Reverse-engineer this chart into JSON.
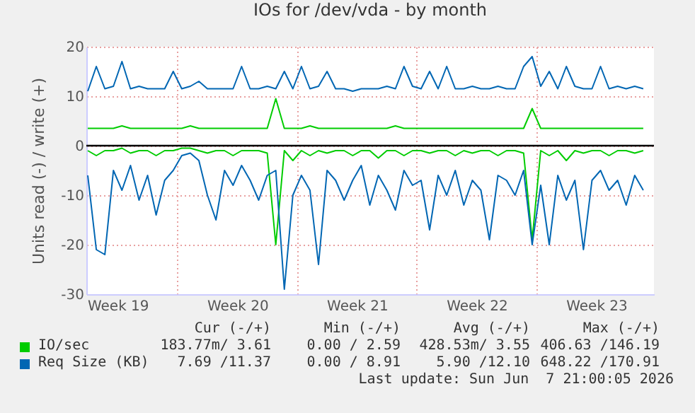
{
  "chart_data": {
    "type": "line",
    "title": "IOs for /dev/vda - by month",
    "ylabel": "Units read (-) / write (+)",
    "x": [
      "2026-05-05T18:00",
      "2026-05-06T06:00",
      "2026-05-06T18:00",
      "2026-05-07T06:00",
      "2026-05-07T18:00",
      "2026-05-08T06:00",
      "2026-05-08T18:00",
      "2026-05-09T06:00",
      "2026-05-09T18:00",
      "2026-05-10T06:00",
      "2026-05-10T18:00",
      "2026-05-11T06:00",
      "2026-05-11T18:00",
      "2026-05-12T06:00",
      "2026-05-12T18:00",
      "2026-05-13T06:00",
      "2026-05-13T18:00",
      "2026-05-14T06:00",
      "2026-05-14T18:00",
      "2026-05-15T06:00",
      "2026-05-15T18:00",
      "2026-05-16T06:00",
      "2026-05-16T18:00",
      "2026-05-17T06:00",
      "2026-05-17T18:00",
      "2026-05-18T06:00",
      "2026-05-18T18:00",
      "2026-05-19T06:00",
      "2026-05-19T18:00",
      "2026-05-20T06:00",
      "2026-05-20T18:00",
      "2026-05-21T06:00",
      "2026-05-21T18:00",
      "2026-05-22T06:00",
      "2026-05-22T18:00",
      "2026-05-23T06:00",
      "2026-05-23T18:00",
      "2026-05-24T06:00",
      "2026-05-24T18:00",
      "2026-05-25T06:00",
      "2026-05-25T18:00",
      "2026-05-26T06:00",
      "2026-05-26T18:00",
      "2026-05-27T06:00",
      "2026-05-27T18:00",
      "2026-05-28T06:00",
      "2026-05-28T18:00",
      "2026-05-29T06:00",
      "2026-05-29T18:00",
      "2026-05-30T06:00",
      "2026-05-30T18:00",
      "2026-05-31T06:00",
      "2026-05-31T18:00",
      "2026-06-01T06:00",
      "2026-06-01T18:00",
      "2026-06-02T06:00",
      "2026-06-02T18:00",
      "2026-06-03T06:00",
      "2026-06-03T18:00",
      "2026-06-04T06:00",
      "2026-06-04T18:00",
      "2026-06-05T06:00",
      "2026-06-05T18:00",
      "2026-06-06T06:00",
      "2026-06-06T18:00",
      "2026-06-07T06:00"
    ],
    "series": [
      {
        "name": "IO/sec",
        "color": "#00cc00",
        "values": [
          3.5,
          3.5,
          3.5,
          3.5,
          4,
          3.5,
          3.5,
          3.5,
          3.5,
          3.5,
          3.5,
          3.5,
          4,
          3.5,
          3.5,
          3.5,
          3.5,
          3.5,
          3.5,
          3.5,
          3.5,
          3.5,
          9.5,
          3.5,
          3.5,
          3.5,
          4,
          3.5,
          3.5,
          3.5,
          3.5,
          3.5,
          3.5,
          3.5,
          3.5,
          3.5,
          4,
          3.5,
          3.5,
          3.5,
          3.5,
          3.5,
          3.5,
          3.5,
          3.5,
          3.5,
          3.5,
          3.5,
          3.5,
          3.5,
          3.5,
          3.5,
          7.5,
          3.5,
          3.5,
          3.5,
          3.5,
          3.5,
          3.5,
          3.5,
          3.5,
          3.5,
          3.5,
          3.5,
          3.5,
          3.5
        ]
      },
      {
        "color": "#00cc00",
        "values": [
          -1,
          -2,
          -1,
          -1,
          -0.5,
          -1.5,
          -1,
          -1,
          -2,
          -1,
          -1,
          -0.5,
          -0.5,
          -1,
          -1.5,
          -1,
          -1,
          -2,
          -1,
          -1,
          -1,
          -1.5,
          -20,
          -1,
          -3,
          -1,
          -2,
          -1,
          -1.5,
          -1,
          -1,
          -2,
          -1,
          -1,
          -2.5,
          -1,
          -1,
          -2,
          -1,
          -1,
          -1.5,
          -1,
          -1,
          -2,
          -1,
          -1.5,
          -1,
          -1,
          -2,
          -1,
          -1,
          -1.5,
          -19,
          -1,
          -2,
          -1,
          -3,
          -1,
          -1.5,
          -1,
          -1,
          -2,
          -1,
          -1,
          -1.5,
          -1
        ]
      },
      {
        "name": "Req Size (KB)",
        "color": "#0066b3",
        "values": [
          11,
          16,
          11.5,
          12,
          17,
          11.5,
          12,
          11.5,
          11.5,
          11.5,
          15,
          11.5,
          12,
          13,
          11.5,
          11.5,
          11.5,
          11.5,
          16,
          11.5,
          11.5,
          12,
          11.5,
          15,
          11.5,
          16,
          11.5,
          12,
          15,
          11.5,
          11.5,
          11,
          11.5,
          11.5,
          11.5,
          12,
          11.5,
          16,
          12,
          11.5,
          15,
          11.5,
          16,
          11.5,
          11.5,
          12,
          11.5,
          11.5,
          12,
          11.5,
          11.5,
          16,
          18,
          12,
          15,
          11.5,
          16,
          12,
          11.5,
          11.5,
          16,
          11.5,
          12,
          11.5,
          12,
          11.5
        ]
      },
      {
        "color": "#0066b3",
        "values": [
          -6,
          -21,
          -22,
          -5,
          -9,
          -4,
          -11,
          -6,
          -14,
          -7,
          -5,
          -2,
          -1.5,
          -3,
          -10,
          -15,
          -5,
          -8,
          -4,
          -7,
          -11,
          -6,
          -5,
          -29,
          -10,
          -6,
          -9,
          -24,
          -5,
          -7,
          -11,
          -7,
          -4,
          -12,
          -6,
          -9,
          -13,
          -5,
          -8,
          -7,
          -17,
          -6,
          -10,
          -5,
          -12,
          -7,
          -9,
          -19,
          -6,
          -7,
          -10,
          -5,
          -20,
          -8,
          -20,
          -6,
          -11,
          -7,
          -21,
          -7,
          -5,
          -9,
          -7,
          -12,
          -6,
          -9
        ]
      }
    ],
    "xlim": [
      "2026-05-05T16:00",
      "2026-06-07T21:00"
    ],
    "xticks": [
      {
        "value": "2026-05-07T12:00",
        "label": "Week 19"
      },
      {
        "value": "2026-05-11",
        "label": null
      },
      {
        "value": "2026-05-14T12:00",
        "label": "Week 20"
      },
      {
        "value": "2026-05-18",
        "label": null
      },
      {
        "value": "2026-05-21T12:00",
        "label": "Week 21"
      },
      {
        "value": "2026-05-25",
        "label": null
      },
      {
        "value": "2026-05-28T12:00",
        "label": "Week 22"
      },
      {
        "value": "2026-06-01",
        "label": null
      },
      {
        "value": "2026-06-04T12:00",
        "label": "Week 23"
      }
    ],
    "ylim": [
      -30,
      20
    ],
    "yticks": [
      -30,
      -20,
      -10,
      0,
      10,
      20
    ],
    "grid": true,
    "ref_lines": [
      {
        "axis": "y",
        "value": 0,
        "color": "#000000"
      }
    ],
    "legend": "bottom",
    "annotations": [
      "Cur (-/+)",
      "Min (-/+)",
      "Avg (-/+)",
      "Max (-/+)",
      "183.77m/ 3.61",
      "0.00 / 2.59",
      "428.53m/ 3.55",
      "406.63 /146.19",
      "7.69 /11.37",
      "0.00 / 8.91",
      "5.90 /12.10",
      "648.22 /170.91",
      "Last update: Sun Jun  7 21:00:05 2026"
    ]
  }
}
